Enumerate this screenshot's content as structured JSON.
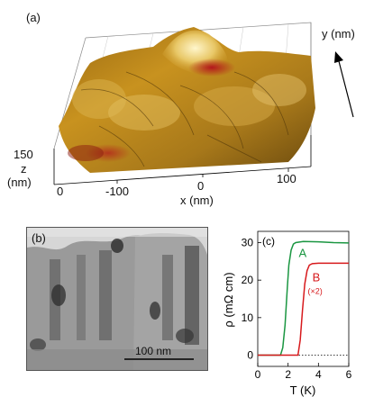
{
  "panel_a": {
    "label": "(a)",
    "y_axis_label": "y (nm)",
    "x_axis_label": "x (nm)",
    "z_axis_label_1": "z",
    "z_axis_label_2": "(nm)",
    "z_ticks": [
      "150",
      "0"
    ],
    "x_ticks": [
      "-100",
      "0",
      "100"
    ],
    "colors": {
      "surface_light": "#f3e4a4",
      "surface_mid": "#c8921f",
      "surface_dark": "#6b4a0e",
      "surface_red": "#a4161a"
    }
  },
  "panel_b": {
    "label": "(b)",
    "scalebar_label": "100 nm"
  },
  "panel_c": {
    "label": "(c)"
  },
  "chart_data": {
    "type": "line",
    "xlabel": "T (K)",
    "ylabel": "ρ (mΩ cm)",
    "xlim": [
      0,
      6
    ],
    "ylim": [
      -3,
      33
    ],
    "xticks": [
      0,
      2,
      4,
      6
    ],
    "yticks": [
      0,
      10,
      20,
      30
    ],
    "grid": false,
    "zero_line": "dotted",
    "series": [
      {
        "name": "A",
        "color": "#1a9641",
        "x": [
          0.0,
          1.5,
          1.65,
          1.8,
          1.95,
          2.05,
          2.2,
          2.35,
          2.5,
          3.0,
          4.0,
          5.0,
          6.0
        ],
        "y": [
          0.0,
          0.0,
          2.0,
          8.0,
          18.0,
          24.0,
          28.0,
          29.6,
          30.0,
          30.3,
          30.2,
          30.0,
          29.9
        ]
      },
      {
        "name": "B",
        "annotation": "(×2)",
        "color": "#d7191c",
        "x": [
          0.0,
          2.65,
          2.8,
          2.95,
          3.1,
          3.25,
          3.4,
          3.6,
          4.0,
          5.0,
          6.0
        ],
        "y": [
          0.0,
          0.0,
          4.0,
          12.0,
          19.0,
          22.5,
          24.0,
          24.4,
          24.5,
          24.5,
          24.5
        ]
      }
    ]
  }
}
